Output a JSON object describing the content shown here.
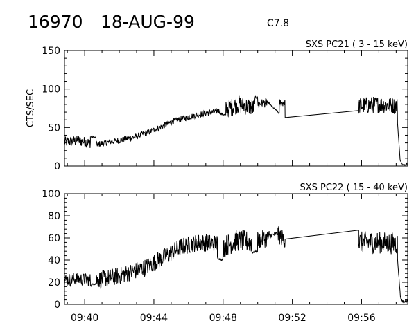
{
  "header": {
    "id_text": "16970",
    "date_text": "18-AUG-99",
    "class_text": "C7.8"
  },
  "chart_data": [
    {
      "type": "line",
      "title": "SXS PC21  (  3 - 15 keV)",
      "ylabel": "CTS/SEC",
      "xlim": [
        "09:38:50",
        "09:58:40"
      ],
      "ylim": [
        0,
        150
      ],
      "yticks": [
        0,
        50,
        100,
        150
      ],
      "color": "#000000",
      "segments": [
        {
          "start": "09:38:50",
          "end": "09:40:20",
          "base": [
            [
              0,
              31
            ],
            [
              0.5,
              33
            ],
            [
              1,
              30
            ]
          ],
          "noise": 7
        },
        {
          "start": "09:40:20",
          "end": "09:40:40",
          "base": [
            [
              0,
              38
            ],
            [
              1,
              37
            ]
          ],
          "noise": 1
        },
        {
          "start": "09:40:40",
          "end": "09:47:50",
          "base": [
            [
              0,
              28
            ],
            [
              0.18,
              33
            ],
            [
              0.32,
              38
            ],
            [
              0.47,
              47
            ],
            [
              0.62,
              58
            ],
            [
              0.8,
              66
            ],
            [
              1,
              72
            ]
          ],
          "noise": 4
        },
        {
          "start": "09:47:50",
          "end": "09:48:10",
          "base": [
            [
              0,
              68
            ],
            [
              1,
              66
            ]
          ],
          "noise": 1
        },
        {
          "start": "09:48:10",
          "end": "09:49:50",
          "base": [
            [
              0,
              73
            ],
            [
              0.4,
              80
            ],
            [
              0.7,
              78
            ],
            [
              1,
              75
            ]
          ],
          "noise": 12
        },
        {
          "start": "09:49:50",
          "end": "09:50:00",
          "base": [
            [
              0,
              88
            ],
            [
              1,
              90
            ]
          ],
          "noise": 2
        },
        {
          "start": "09:50:00",
          "end": "09:50:35",
          "base": [
            [
              0,
              80
            ],
            [
              1,
              83
            ]
          ],
          "noise": 6
        },
        {
          "start": "09:50:35",
          "end": "09:51:15",
          "base": [
            [
              0,
              83
            ],
            [
              1,
              68
            ]
          ],
          "noise": 1
        },
        {
          "start": "09:51:15",
          "end": "09:51:35",
          "base": [
            [
              0,
              82
            ],
            [
              1,
              82
            ]
          ],
          "noise": 5
        },
        {
          "start": "09:51:35",
          "end": "09:55:50",
          "base": [
            [
              0,
              63
            ],
            [
              1,
              72
            ]
          ],
          "noise": 0
        },
        {
          "start": "09:55:50",
          "end": "09:58:05",
          "base": [
            [
              0,
              78
            ],
            [
              0.5,
              80
            ],
            [
              1,
              78
            ]
          ],
          "noise": 11
        },
        {
          "start": "09:58:05",
          "end": "09:58:40",
          "base": [
            [
              0,
              55
            ],
            [
              0.25,
              8
            ],
            [
              0.5,
              1
            ],
            [
              0.75,
              2
            ],
            [
              1,
              4
            ]
          ],
          "noise": 1
        }
      ]
    },
    {
      "type": "line",
      "title": "SXS PC22  ( 15 - 40 keV)",
      "ylabel": "",
      "xlim": [
        "09:38:50",
        "09:58:40"
      ],
      "ylim": [
        0,
        100
      ],
      "yticks": [
        0,
        20,
        40,
        60,
        80,
        100
      ],
      "xticks": [
        "09:40",
        "09:44",
        "09:48",
        "09:52",
        "09:56"
      ],
      "color": "#000000",
      "segments": [
        {
          "start": "09:38:50",
          "end": "09:40:20",
          "base": [
            [
              0,
              22
            ],
            [
              0.5,
              23
            ],
            [
              1,
              22
            ]
          ],
          "noise": 6
        },
        {
          "start": "09:40:20",
          "end": "09:40:40",
          "base": [
            [
              0,
              17
            ],
            [
              1,
              19
            ]
          ],
          "noise": 1
        },
        {
          "start": "09:40:40",
          "end": "09:47:40",
          "base": [
            [
              0,
              22
            ],
            [
              0.2,
              26
            ],
            [
              0.4,
              33
            ],
            [
              0.55,
              42
            ],
            [
              0.7,
              52
            ],
            [
              0.85,
              56
            ],
            [
              1,
              55
            ]
          ],
          "noise": 8
        },
        {
          "start": "09:47:40",
          "end": "09:48:00",
          "base": [
            [
              0,
              42
            ],
            [
              1,
              40
            ]
          ],
          "noise": 1
        },
        {
          "start": "09:48:00",
          "end": "09:49:40",
          "base": [
            [
              0,
              52
            ],
            [
              0.5,
              58
            ],
            [
              1,
              56
            ]
          ],
          "noise": 10
        },
        {
          "start": "09:49:40",
          "end": "09:50:00",
          "base": [
            [
              0,
              47
            ],
            [
              1,
              48
            ]
          ],
          "noise": 1
        },
        {
          "start": "09:50:00",
          "end": "09:50:40",
          "base": [
            [
              0,
              58
            ],
            [
              1,
              60
            ]
          ],
          "noise": 8
        },
        {
          "start": "09:50:40",
          "end": "09:51:10",
          "base": [
            [
              0,
              62
            ],
            [
              1,
              64
            ]
          ],
          "noise": 2
        },
        {
          "start": "09:51:10",
          "end": "09:51:35",
          "base": [
            [
              0,
              63
            ],
            [
              1,
              58
            ]
          ],
          "noise": 8
        },
        {
          "start": "09:51:35",
          "end": "09:55:50",
          "base": [
            [
              0,
              59
            ],
            [
              1,
              67
            ]
          ],
          "noise": 0
        },
        {
          "start": "09:55:50",
          "end": "09:58:05",
          "base": [
            [
              0,
              56
            ],
            [
              0.5,
              56
            ],
            [
              1,
              55
            ]
          ],
          "noise": 10
        },
        {
          "start": "09:58:05",
          "end": "09:58:40",
          "base": [
            [
              0,
              40
            ],
            [
              0.3,
              5
            ],
            [
              0.6,
              2
            ],
            [
              1,
              3
            ]
          ],
          "noise": 1
        }
      ]
    }
  ]
}
